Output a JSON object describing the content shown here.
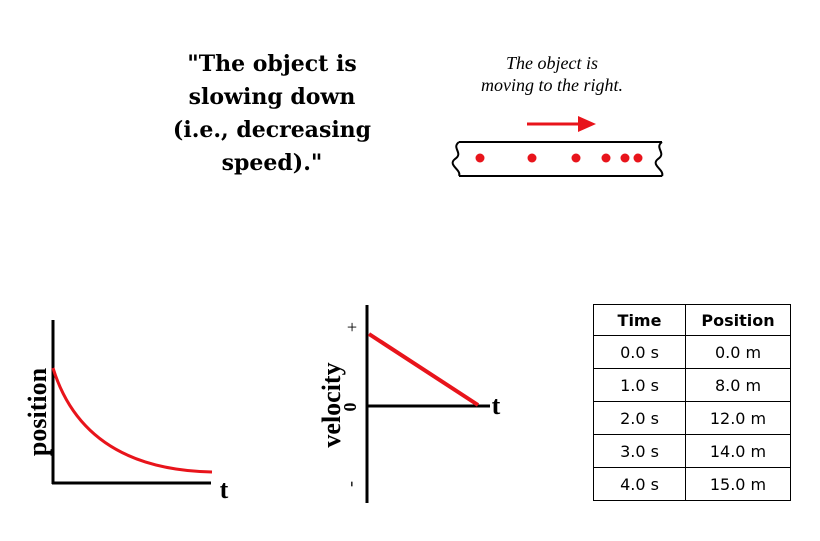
{
  "statement": {
    "lines": [
      "\"The object is",
      "slowing down",
      "(i.e., decreasing",
      "speed).\""
    ]
  },
  "caption": {
    "lines": [
      "The object is",
      "moving to the right."
    ]
  },
  "motion_diagram": {
    "direction": "right",
    "dot_color": "#e8141b",
    "dot_count": 6
  },
  "position_graph": {
    "ylabel": "position",
    "xlabel": "t",
    "curve_color": "#e8141b",
    "shape": "decreasing-slope curve"
  },
  "velocity_graph": {
    "ylabel": "velocity",
    "xlabel": "t",
    "plus_label": "+",
    "zero_label": "0",
    "minus_label": "-",
    "line_color": "#e8141b"
  },
  "table": {
    "headers": [
      "Time",
      "Position"
    ],
    "rows": [
      [
        "0.0 s",
        "0.0 m"
      ],
      [
        "1.0 s",
        "8.0 m"
      ],
      [
        "2.0 s",
        "12.0 m"
      ],
      [
        "3.0 s",
        "14.0 m"
      ],
      [
        "4.0 s",
        "15.0 m"
      ]
    ]
  },
  "colors": {
    "accent": "#e8141b",
    "ink": "#000000"
  }
}
